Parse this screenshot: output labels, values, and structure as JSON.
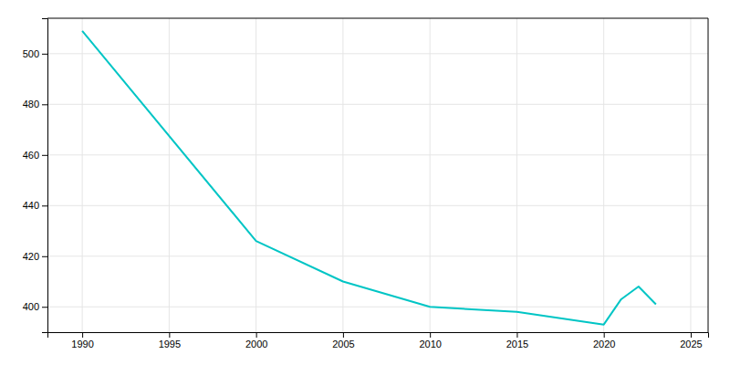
{
  "chart_data": {
    "type": "line",
    "x": [
      1990,
      2000,
      2005,
      2010,
      2015,
      2020,
      2021,
      2022,
      2023
    ],
    "values": [
      509,
      426,
      410,
      400,
      398,
      393,
      403,
      408,
      401
    ],
    "color": "#00C5C5",
    "xlim": [
      1988,
      2026
    ],
    "ylim": [
      390,
      514
    ],
    "xticks": [
      1990,
      1995,
      2000,
      2005,
      2010,
      2015,
      2020,
      2025
    ],
    "yticks": [
      400,
      420,
      440,
      460,
      480,
      500
    ],
    "grid": true
  }
}
